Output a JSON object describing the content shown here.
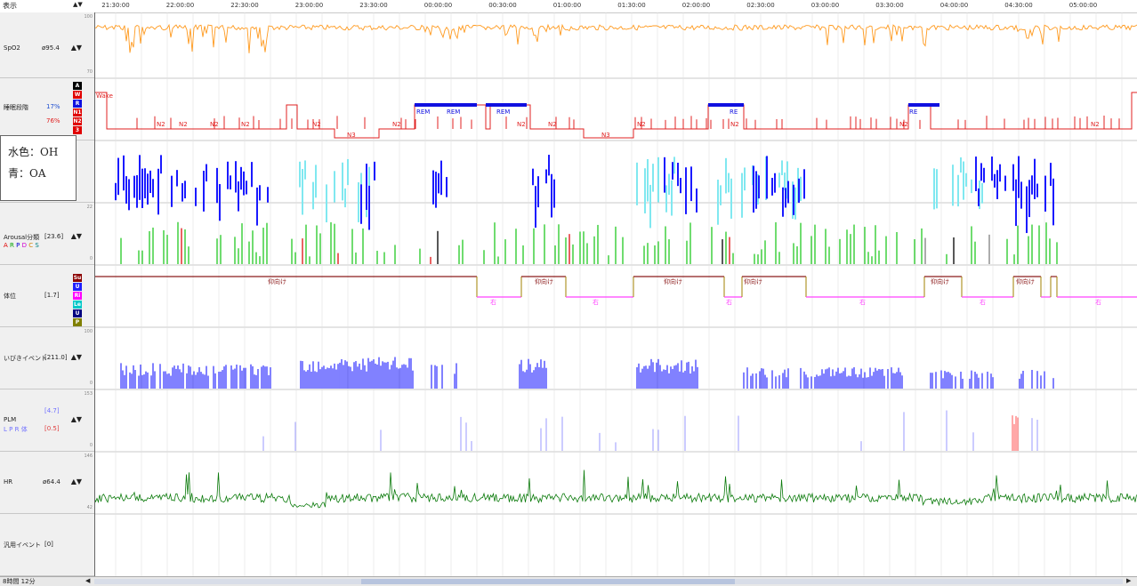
{
  "header": {
    "display_label": "表示",
    "sort_icon": "▲▼"
  },
  "time_ticks": [
    "21:30:00",
    "22:00:00",
    "22:30:00",
    "23:00:00",
    "23:30:00",
    "00:00:00",
    "00:30:00",
    "01:00:00",
    "01:30:00",
    "02:00:00",
    "02:30:00",
    "03:00:00",
    "03:30:00",
    "04:00:00",
    "04:30:00",
    "05:00:00"
  ],
  "rows": {
    "spo2": {
      "label": "SpO2",
      "value": "ø95.4",
      "scale_top": "100",
      "scale_bottom": "70",
      "color": "#ff9a1f"
    },
    "sleep_stage": {
      "label": "睡眠段階",
      "percent_1": "17%",
      "percent_2": "76%",
      "keys": [
        {
          "text": "A",
          "color": "#000000"
        },
        {
          "text": "W",
          "color": "#e00000"
        },
        {
          "text": "R",
          "color": "#1010e0"
        },
        {
          "text": "N1",
          "color": "#e00000"
        },
        {
          "text": "N2",
          "color": "#e00000"
        },
        {
          "text": "3",
          "color": "#e00000"
        }
      ],
      "wake_label": "Wake",
      "n2_label": "N2",
      "n3_label": "N3",
      "rem_label": "REM",
      "re_label": "RE"
    },
    "respiration": {
      "color_oh": "#80e8f0",
      "color_oa": "#1a1aff"
    },
    "arousal": {
      "label": "Arousal分類",
      "value": "[23.6]",
      "scale_top": "22",
      "scale_bottom": "0",
      "keys": [
        {
          "text": "A",
          "color": "#e00000"
        },
        {
          "text": "R",
          "color": "#00a000"
        },
        {
          "text": "P",
          "color": "#0000d0"
        },
        {
          "text": "D",
          "color": "#d000d0"
        },
        {
          "text": "C",
          "color": "#d08000"
        },
        {
          "text": "S",
          "color": "#008080"
        }
      ]
    },
    "position": {
      "label": "体位",
      "value": "[1.7]",
      "keys": [
        {
          "text": "Su",
          "color": "#8b0000"
        },
        {
          "text": "U",
          "color": "#2020ff"
        },
        {
          "text": "Ri",
          "color": "#ff00ff"
        },
        {
          "text": "Le",
          "color": "#00c8c8"
        },
        {
          "text": "U",
          "color": "#000080"
        },
        {
          "text": "P",
          "color": "#808000"
        }
      ],
      "supine_label": "仰向け",
      "right_label": "右"
    },
    "snore": {
      "label": "いびきイベント",
      "value": "[211.0]",
      "scale_top": "100",
      "scale_bottom": "0"
    },
    "plm": {
      "label": "PLM",
      "value_1": "[4.7]",
      "value_2": "[0.5]",
      "scale_top": "153",
      "scale_bottom": "0",
      "keys": [
        {
          "text": "L",
          "color": "#7070ff"
        },
        {
          "text": "P",
          "color": "#7070ff"
        },
        {
          "text": "R",
          "color": "#7070ff"
        },
        {
          "text": "体",
          "color": "#7070ff"
        }
      ]
    },
    "hr": {
      "label": "HR",
      "value": "ø64.4",
      "scale_top": "146",
      "scale_bottom": "42",
      "color": "#0a7a0a"
    },
    "general": {
      "label": "汎用イベント",
      "value": "[0]"
    }
  },
  "tooltip": {
    "line_1": "水色：OH",
    "line_2": "青：OA"
  },
  "status": {
    "zoom_label": "8時間 12分",
    "scroll_left": "◀",
    "scroll_right": "▶"
  },
  "arrows": "▲▼"
}
